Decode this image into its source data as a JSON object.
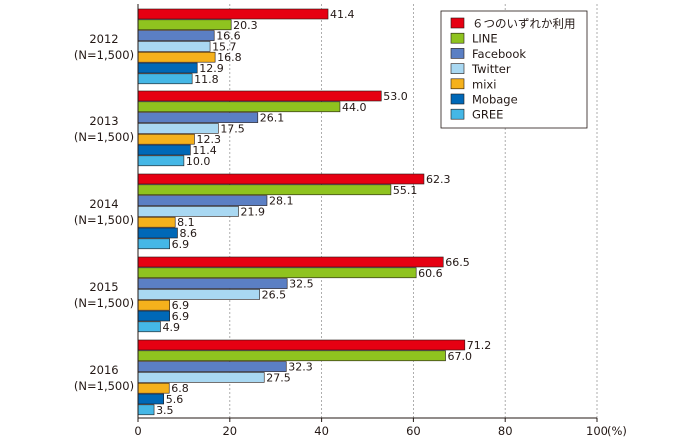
{
  "chart_data": {
    "type": "bar",
    "orientation": "horizontal",
    "categories": [
      {
        "year": "2012",
        "sample": "(N=1,500)"
      },
      {
        "year": "2013",
        "sample": "(N=1,500)"
      },
      {
        "year": "2014",
        "sample": "(N=1,500)"
      },
      {
        "year": "2015",
        "sample": "(N=1,500)"
      },
      {
        "year": "2016",
        "sample": "(N=1,500)"
      }
    ],
    "series": [
      {
        "name": "６つのいずれか利用",
        "color": "#e60012",
        "values": [
          41.4,
          53.0,
          62.3,
          66.5,
          71.2
        ]
      },
      {
        "name": "LINE",
        "color": "#8fc31f",
        "values": [
          20.3,
          44.0,
          55.1,
          60.6,
          67.0
        ]
      },
      {
        "name": "Facebook",
        "color": "#5b7fc4",
        "values": [
          16.6,
          26.1,
          28.1,
          32.5,
          32.3
        ]
      },
      {
        "name": "Twitter",
        "color": "#a9d8f2",
        "values": [
          15.7,
          17.5,
          21.9,
          26.5,
          27.5
        ]
      },
      {
        "name": "mixi",
        "color": "#f5b11c",
        "values": [
          16.8,
          12.3,
          8.1,
          6.9,
          6.8
        ]
      },
      {
        "name": "Mobage",
        "color": "#0068b7",
        "values": [
          12.9,
          11.4,
          8.6,
          6.9,
          5.6
        ]
      },
      {
        "name": "GREE",
        "color": "#45b7e6",
        "values": [
          11.8,
          10.0,
          6.9,
          4.9,
          3.5
        ]
      }
    ],
    "xlim": [
      0,
      100
    ],
    "xticks": [
      0,
      20,
      40,
      60,
      80,
      100
    ],
    "unit": "(%)",
    "grid": "vertical dashed",
    "legend": "top-right"
  }
}
